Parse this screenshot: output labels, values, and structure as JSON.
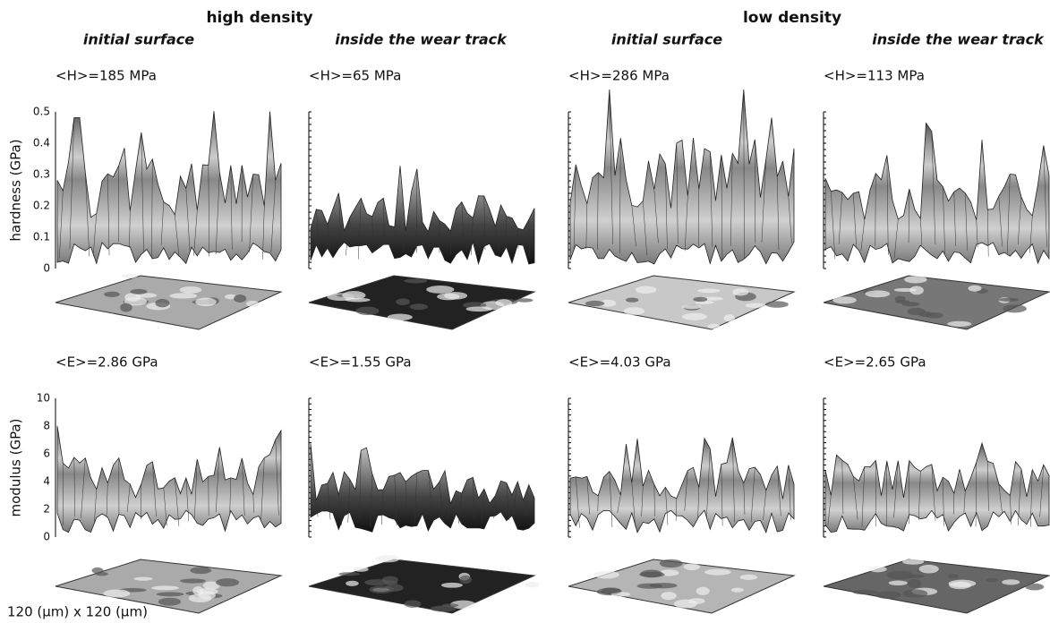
{
  "header": {
    "groups": [
      "high density",
      "low density"
    ],
    "columns": [
      "initial surface",
      "inside the wear track",
      "initial surface",
      "inside the wear track"
    ]
  },
  "rows": [
    {
      "axis_label": "hardness (GPa)",
      "ticks": [
        "0",
        "0.1",
        "0.2",
        "0.3",
        "0.4",
        "0.5"
      ],
      "means": [
        "<H>=185 MPa",
        "<H>=65 MPa",
        "<H>=286 MPa",
        "<H>=113 MPa"
      ]
    },
    {
      "axis_label": "modulus (GPa)",
      "ticks": [
        "0",
        "2",
        "4",
        "6",
        "8",
        "10"
      ],
      "means": [
        "<E>=2.86 GPa",
        "<E>=1.55 GPa",
        "<E>=4.03 GPa",
        "<E>=2.65 GPa"
      ]
    }
  ],
  "footer": "120 (μm)  x  120 (μm)"
}
